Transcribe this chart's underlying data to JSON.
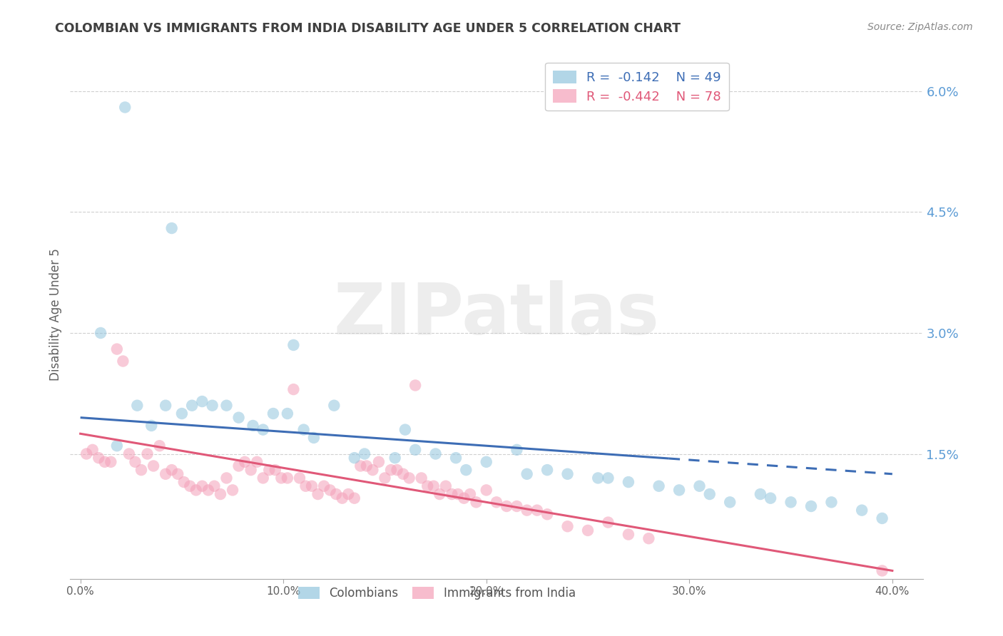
{
  "title": "COLOMBIAN VS IMMIGRANTS FROM INDIA DISABILITY AGE UNDER 5 CORRELATION CHART",
  "source": "Source: ZipAtlas.com",
  "ylabel_left": "Disability Age Under 5",
  "ylim": [
    -0.05,
    6.5
  ],
  "xlim": [
    -0.5,
    41.5
  ],
  "y_ticks_right": [
    1.5,
    3.0,
    4.5,
    6.0
  ],
  "y_tick_labels_right": [
    "1.5%",
    "3.0%",
    "4.5%",
    "6.0%"
  ],
  "x_ticks": [
    0,
    10,
    20,
    30,
    40
  ],
  "x_tick_labels": [
    "0.0%",
    "10.0%",
    "20.0%",
    "30.0%",
    "40.0%"
  ],
  "colombian_color": "#92c5de",
  "india_color": "#f4a0b8",
  "trend_blue_color": "#3d6db5",
  "trend_pink_color": "#e05878",
  "watermark": "ZIPatlas",
  "grid_color": "#d0d0d0",
  "right_axis_color": "#5b9bd5",
  "title_color": "#404040",
  "source_color": "#888888",
  "ylabel_color": "#606060",
  "xtick_color": "#606060",
  "colombians_x": [
    2.2,
    4.5,
    10.5,
    1.0,
    1.8,
    2.8,
    3.5,
    4.2,
    5.0,
    5.5,
    6.0,
    6.5,
    7.2,
    7.8,
    8.5,
    9.0,
    9.5,
    10.2,
    11.0,
    11.5,
    12.5,
    13.5,
    14.0,
    15.5,
    16.5,
    17.5,
    18.5,
    20.0,
    22.0,
    24.0,
    25.5,
    27.0,
    28.5,
    29.5,
    30.5,
    32.0,
    33.5,
    35.0,
    36.0,
    37.0,
    38.5,
    39.5,
    31.0,
    23.0,
    21.5,
    26.0,
    19.0,
    34.0,
    16.0
  ],
  "colombians_y": [
    5.8,
    4.3,
    2.85,
    3.0,
    1.6,
    2.1,
    1.85,
    2.1,
    2.0,
    2.1,
    2.15,
    2.1,
    2.1,
    1.95,
    1.85,
    1.8,
    2.0,
    2.0,
    1.8,
    1.7,
    2.1,
    1.45,
    1.5,
    1.45,
    1.55,
    1.5,
    1.45,
    1.4,
    1.25,
    1.25,
    1.2,
    1.15,
    1.1,
    1.05,
    1.1,
    0.9,
    1.0,
    0.9,
    0.85,
    0.9,
    0.8,
    0.7,
    1.0,
    1.3,
    1.55,
    1.2,
    1.3,
    0.95,
    1.8
  ],
  "india_x": [
    0.3,
    0.6,
    0.9,
    1.2,
    1.5,
    1.8,
    2.1,
    2.4,
    2.7,
    3.0,
    3.3,
    3.6,
    3.9,
    4.2,
    4.5,
    4.8,
    5.1,
    5.4,
    5.7,
    6.0,
    6.3,
    6.6,
    6.9,
    7.2,
    7.5,
    7.8,
    8.1,
    8.4,
    8.7,
    9.0,
    9.3,
    9.6,
    9.9,
    10.2,
    10.5,
    10.8,
    11.1,
    11.4,
    11.7,
    12.0,
    12.3,
    12.6,
    12.9,
    13.2,
    13.5,
    13.8,
    14.1,
    14.4,
    14.7,
    15.0,
    15.3,
    15.6,
    15.9,
    16.2,
    16.5,
    16.8,
    17.1,
    17.4,
    17.7,
    18.0,
    18.3,
    18.6,
    18.9,
    19.2,
    19.5,
    20.0,
    20.5,
    21.0,
    21.5,
    22.0,
    22.5,
    23.0,
    24.0,
    25.0,
    26.0,
    27.0,
    28.0,
    39.5
  ],
  "india_y": [
    1.5,
    1.55,
    1.45,
    1.4,
    1.4,
    2.8,
    2.65,
    1.5,
    1.4,
    1.3,
    1.5,
    1.35,
    1.6,
    1.25,
    1.3,
    1.25,
    1.15,
    1.1,
    1.05,
    1.1,
    1.05,
    1.1,
    1.0,
    1.2,
    1.05,
    1.35,
    1.4,
    1.3,
    1.4,
    1.2,
    1.3,
    1.3,
    1.2,
    1.2,
    2.3,
    1.2,
    1.1,
    1.1,
    1.0,
    1.1,
    1.05,
    1.0,
    0.95,
    1.0,
    0.95,
    1.35,
    1.35,
    1.3,
    1.4,
    1.2,
    1.3,
    1.3,
    1.25,
    1.2,
    2.35,
    1.2,
    1.1,
    1.1,
    1.0,
    1.1,
    1.0,
    1.0,
    0.95,
    1.0,
    0.9,
    1.05,
    0.9,
    0.85,
    0.85,
    0.8,
    0.8,
    0.75,
    0.6,
    0.55,
    0.65,
    0.5,
    0.45,
    0.05
  ],
  "trend_blue_x0": 0,
  "trend_blue_x1": 40,
  "trend_blue_y0": 1.95,
  "trend_blue_y1": 1.25,
  "trend_blue_solid_end": 29,
  "trend_pink_x0": 0,
  "trend_pink_x1": 40,
  "trend_pink_y0": 1.75,
  "trend_pink_y1": 0.05
}
